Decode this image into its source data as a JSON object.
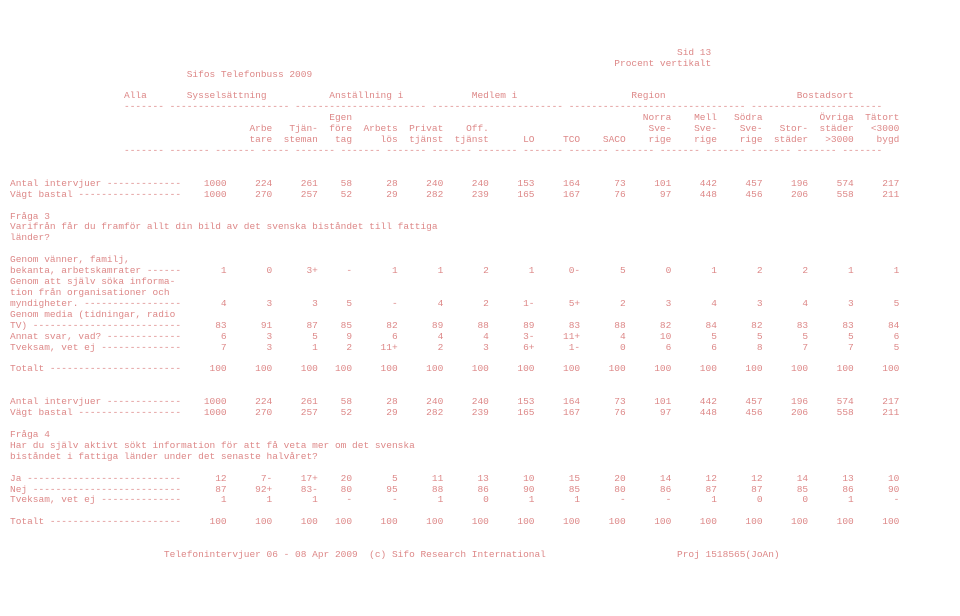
{
  "page": {
    "sid": "Sid 13",
    "pct": "Procent vertikalt",
    "title": "Sifos Telefonbuss 2009",
    "footer": "Telefonintervjuer 06 - 08 Apr 2009  (c) Sifo Research International                       Proj 1518565(JoAn)"
  },
  "colgroups": {
    "g1": "Alla",
    "g2": "Sysselsättning",
    "g3": "Anställning i",
    "g4": "Medlem i",
    "g5": "Region",
    "g6": "Bostadsort"
  },
  "colheads": {
    "r1": {
      "c1": "",
      "c2": "",
      "c3": "",
      "c4": "Egen",
      "c5": "",
      "c6": "",
      "c7": "",
      "c8": "",
      "c9": "",
      "c10": "",
      "c11": "Norra",
      "c12": "Mell",
      "c13": "Södra",
      "c14": "",
      "c15": "Övriga",
      "c16": "Tätort"
    },
    "r2": {
      "c1": "",
      "c2": "Arbe",
      "c3": "Tjän-",
      "c4": "före",
      "c5": "Arbets",
      "c6": "Privat",
      "c7": "Off.",
      "c8": "",
      "c9": "",
      "c10": "",
      "c11": "Sve-",
      "c12": "Sve-",
      "c13": "Sve-",
      "c14": "Stor-",
      "c15": "städer",
      "c16": "<3000"
    },
    "r3": {
      "c1": "",
      "c2": "tare",
      "c3": "steman",
      "c4": "tag",
      "c5": "lös",
      "c6": "tjänst",
      "c7": "tjänst",
      "c8": "LO",
      "c9": "TCO",
      "c10": "SACO",
      "c11": "rige",
      "c12": "rige",
      "c13": "rige",
      "c14": "städer",
      "c15": "tätort",
      "c16": "lands"
    },
    "r4": {
      "c15": ">3000",
      "c16": "bygd"
    }
  },
  "section1": {
    "antal": {
      "label": "Antal intervjuer -------------",
      "v": [
        "1000",
        "224",
        "261",
        "58",
        "28",
        "240",
        "240",
        "153",
        "164",
        "73",
        "101",
        "442",
        "457",
        "196",
        "574",
        "217"
      ]
    },
    "vagt": {
      "label": "Vägt bastal ------------------",
      "v": [
        "1000",
        "270",
        "257",
        "52",
        "29",
        "282",
        "239",
        "165",
        "167",
        "76",
        "97",
        "448",
        "456",
        "206",
        "558",
        "211"
      ]
    }
  },
  "fraga3": {
    "title": "Fråga 3",
    "text1": "Varifrån får du framför allt din bild av det svenska biståndet till fattiga",
    "text2": "länder?",
    "rows": {
      "r1": {
        "l1": "Genom vänner, familj,",
        "l2": "bekanta, arbetskamrater ------",
        "v": [
          "1",
          "0",
          "3+",
          "-",
          "1",
          "1",
          "2",
          "1",
          "0-",
          "5",
          "0",
          "1",
          "2",
          "2",
          "1",
          "1"
        ]
      },
      "r2": {
        "l1": "Genom att själv söka informa-",
        "l2": "tion från organisationer och",
        "l3": "myndigheter. -----------------",
        "v": [
          "4",
          "3",
          "3",
          "5",
          "-",
          "4",
          "2",
          "1-",
          "5+",
          "2",
          "3",
          "4",
          "3",
          "4",
          "3",
          "5"
        ]
      },
      "r3": {
        "l1": "Genom media (tidningar, radio",
        "l2": "TV) --------------------------",
        "v": [
          "83",
          "91",
          "87",
          "85",
          "82",
          "89",
          "88",
          "89",
          "83",
          "88",
          "82",
          "84",
          "82",
          "83",
          "83",
          "84"
        ]
      },
      "r4": {
        "l": "Annat svar, vad? -------------",
        "v": [
          "6",
          "3",
          "5",
          "9",
          "6",
          "4",
          "4",
          "3-",
          "11+",
          "4",
          "10",
          "5",
          "5",
          "5",
          "5",
          "6"
        ]
      },
      "r5": {
        "l": "Tveksam, vet ej --------------",
        "v": [
          "7",
          "3",
          "1",
          "2",
          "11+",
          "2",
          "3",
          "6+",
          "1-",
          "0",
          "6",
          "6",
          "8",
          "7",
          "7",
          "5"
        ]
      },
      "tot": {
        "l": "Totalt -----------------------",
        "v": [
          "100",
          "100",
          "100",
          "100",
          "100",
          "100",
          "100",
          "100",
          "100",
          "100",
          "100",
          "100",
          "100",
          "100",
          "100",
          "100"
        ]
      }
    }
  },
  "section2": {
    "antal": {
      "label": "Antal intervjuer -------------",
      "v": [
        "1000",
        "224",
        "261",
        "58",
        "28",
        "240",
        "240",
        "153",
        "164",
        "73",
        "101",
        "442",
        "457",
        "196",
        "574",
        "217"
      ]
    },
    "vagt": {
      "label": "Vägt bastal ------------------",
      "v": [
        "1000",
        "270",
        "257",
        "52",
        "29",
        "282",
        "239",
        "165",
        "167",
        "76",
        "97",
        "448",
        "456",
        "206",
        "558",
        "211"
      ]
    }
  },
  "fraga4": {
    "title": "Fråga 4",
    "text1": "Har du själv aktivt sökt information för att få veta mer om det svenska",
    "text2": "biståndet i fattiga länder under det senaste halvåret?",
    "rows": {
      "ja": {
        "l": "Ja ---------------------------",
        "v": [
          "12",
          "7-",
          "17+",
          "20",
          "5",
          "11",
          "13",
          "10",
          "15",
          "20",
          "14",
          "12",
          "12",
          "14",
          "13",
          "10"
        ]
      },
      "nej": {
        "l": "Nej --------------------------",
        "v": [
          "87",
          "92+",
          "83-",
          "80",
          "95",
          "88",
          "86",
          "90",
          "85",
          "80",
          "86",
          "87",
          "87",
          "85",
          "86",
          "90"
        ]
      },
      "tv": {
        "l": "Tveksam, vet ej --------------",
        "v": [
          "1",
          "1",
          "1",
          "-",
          "-",
          "1",
          "0",
          "1",
          "1",
          "-",
          "-",
          "1",
          "0",
          "0",
          "1",
          "-"
        ]
      },
      "tot": {
        "l": "Totalt -----------------------",
        "v": [
          "100",
          "100",
          "100",
          "100",
          "100",
          "100",
          "100",
          "100",
          "100",
          "100",
          "100",
          "100",
          "100",
          "100",
          "100",
          "100"
        ]
      }
    }
  }
}
